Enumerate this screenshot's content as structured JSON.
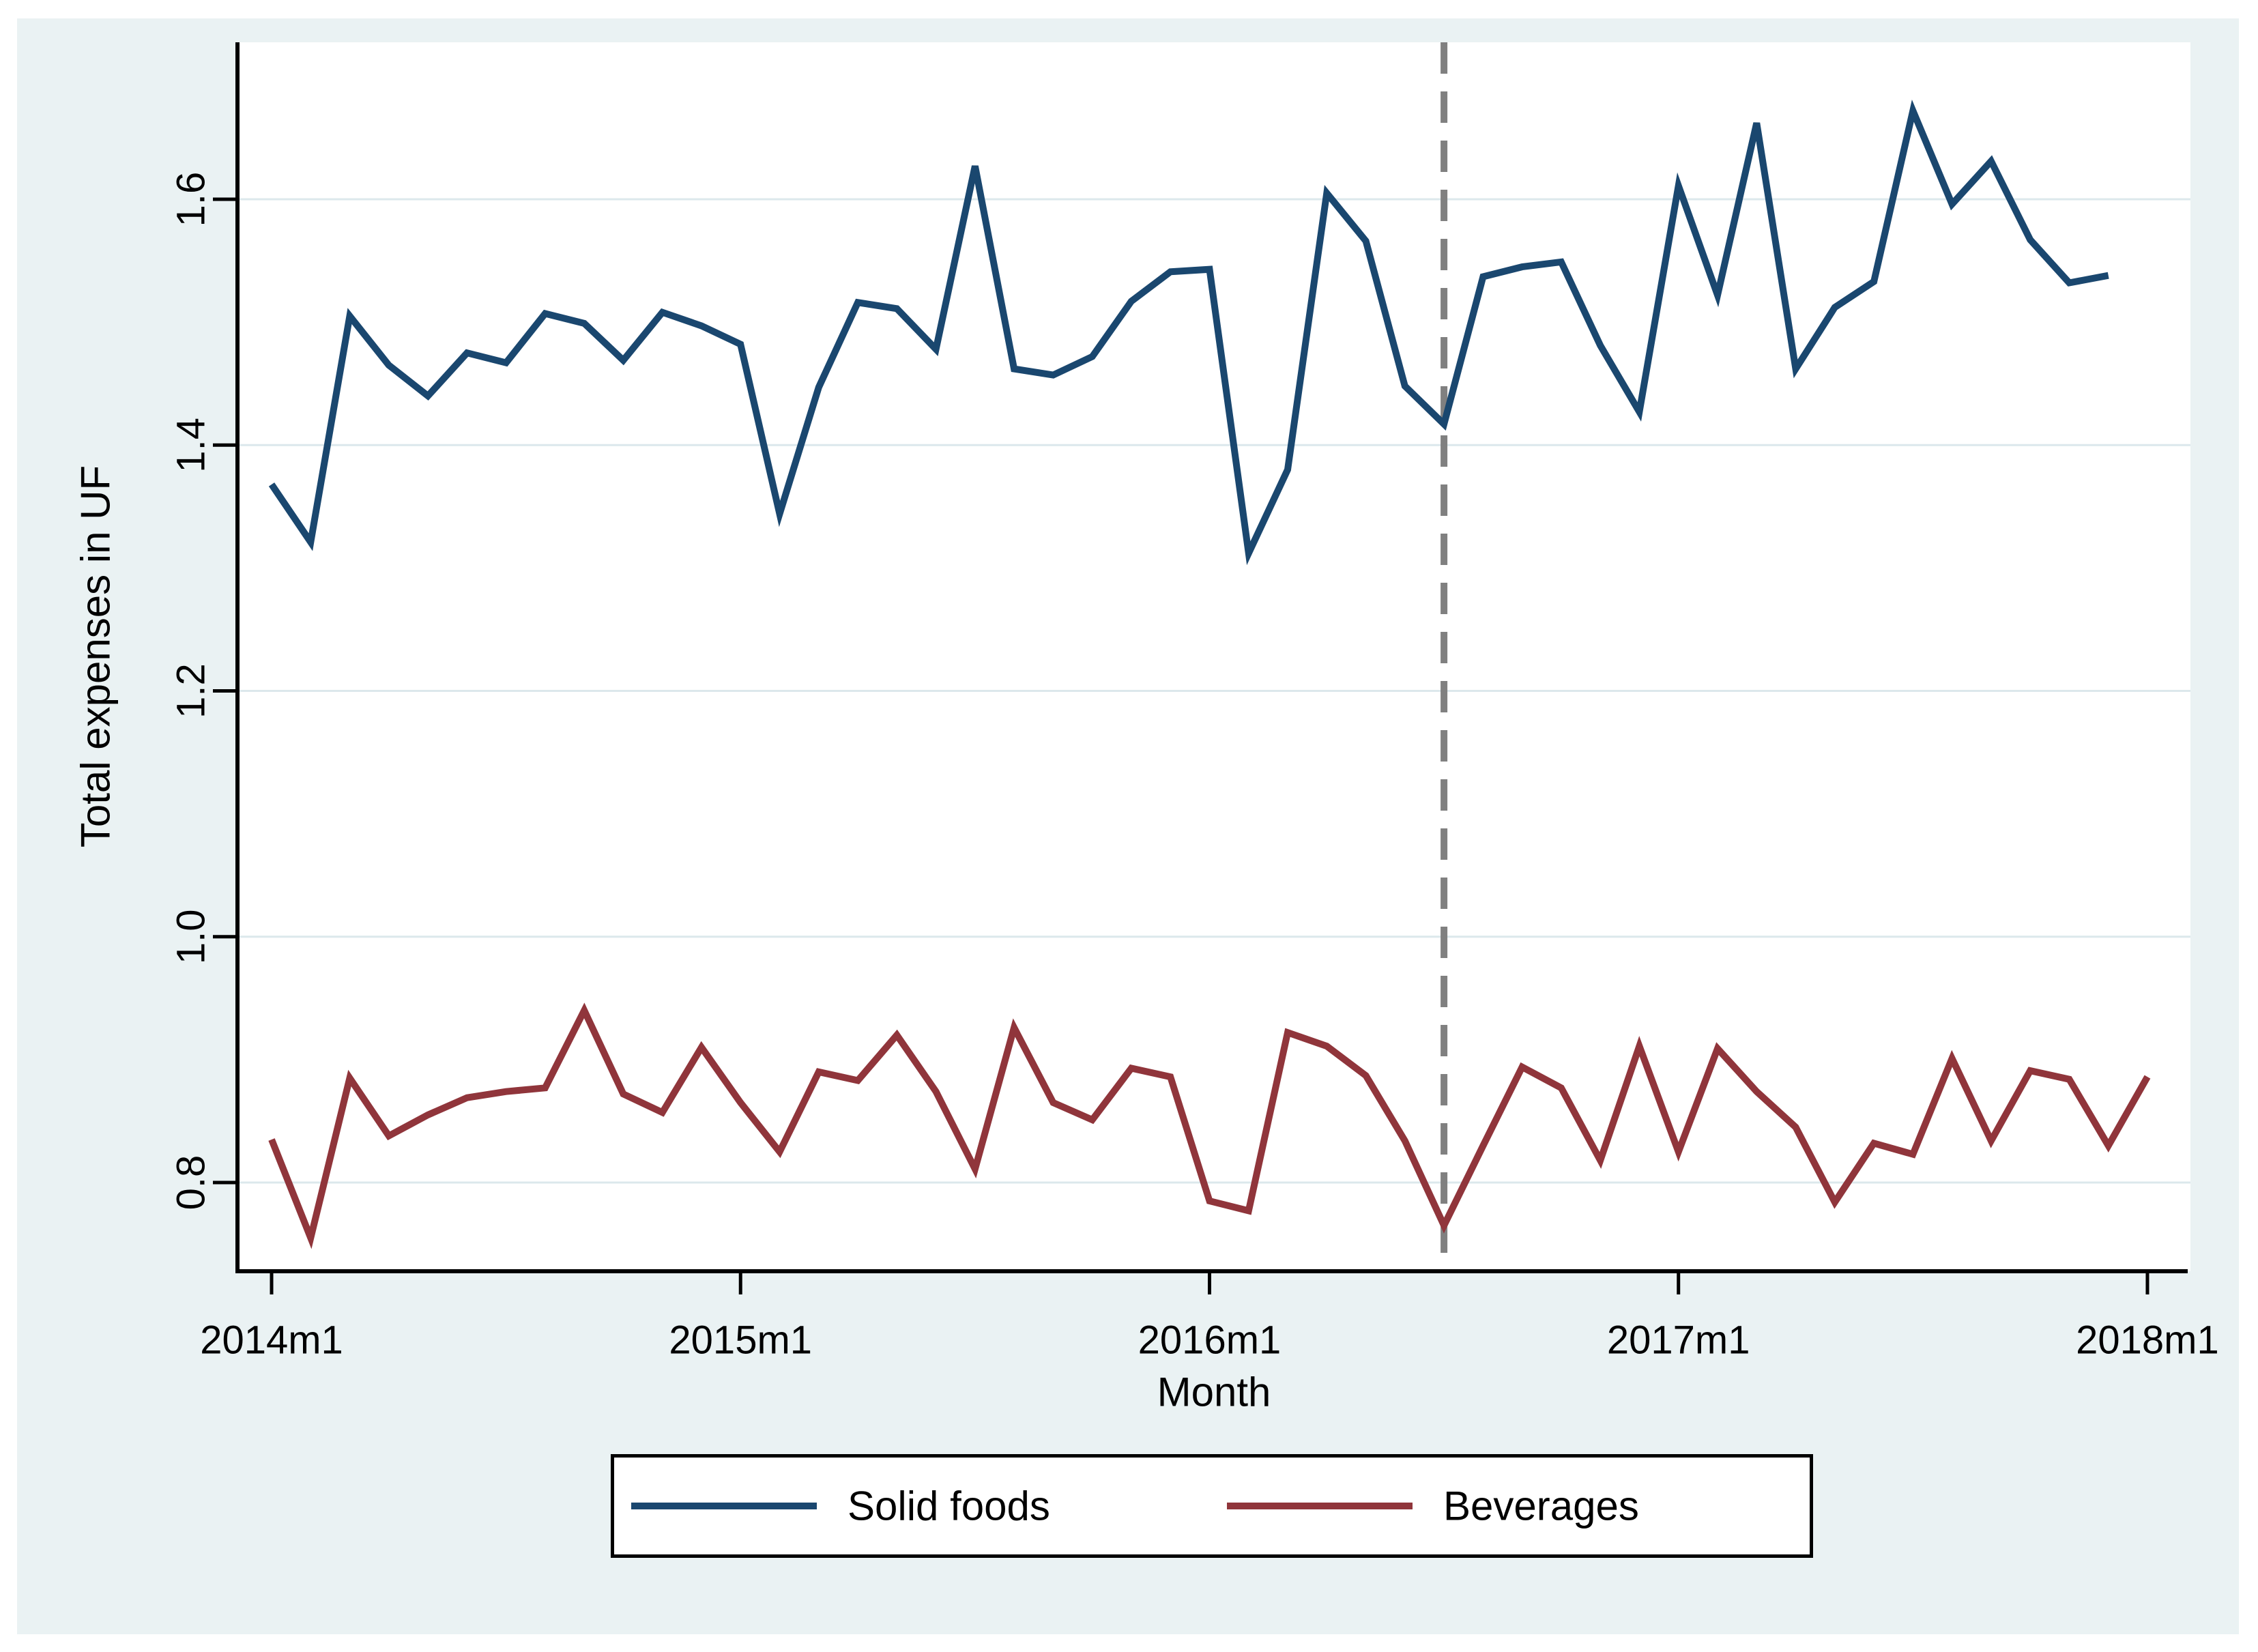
{
  "page": {
    "background": "#ffffff"
  },
  "figure": {
    "background": "#eaf2f3",
    "plot_background": "#ffffff",
    "grid_color": "#dce8ec",
    "axis_color": "#000000",
    "text_color": "#000000",
    "reference_line_color": "#808080"
  },
  "chart_data": {
    "type": "line",
    "title": "",
    "xlabel": "Month",
    "ylabel": "Total expenses in UF",
    "x_tick_labels": [
      "2014m1",
      "2015m1",
      "2016m1",
      "2017m1",
      "2018m1"
    ],
    "x_tick_month_index": [
      0,
      12,
      24,
      36,
      48
    ],
    "y_ticks": [
      0.8,
      1.0,
      1.2,
      1.4,
      1.6
    ],
    "y_tick_labels": [
      "0.8",
      "1.0",
      "1.2",
      "1.4",
      "1.6"
    ],
    "ylim": [
      0.728,
      1.728
    ],
    "xlim_month_index": [
      -0.9,
      49.2
    ],
    "grid": "horizontal",
    "y_tick_label_rotation": -90,
    "reference_line": {
      "month_index": 30,
      "month": "2016m7",
      "style": "dashed"
    },
    "legend": {
      "position": "bottom-center",
      "border": true
    },
    "series": [
      {
        "name": "Solid foods",
        "color": "#1a476f",
        "start": "2014m1",
        "frequency": "monthly",
        "values": [
          1.368,
          1.321,
          1.505,
          1.465,
          1.44,
          1.475,
          1.467,
          1.507,
          1.499,
          1.469,
          1.508,
          1.497,
          1.482,
          1.344,
          1.447,
          1.516,
          1.511,
          1.478,
          1.627,
          1.462,
          1.457,
          1.472,
          1.517,
          1.541,
          1.543,
          1.312,
          1.38,
          1.605,
          1.566,
          1.448,
          1.417,
          1.537,
          1.545,
          1.549,
          1.481,
          1.427,
          1.611,
          1.522,
          1.662,
          1.462,
          1.512,
          1.533,
          1.672,
          1.596,
          1.631,
          1.567,
          1.532,
          1.538
        ]
      },
      {
        "name": "Beverages",
        "color": "#90353b",
        "start": "2014m1",
        "frequency": "monthly",
        "values": [
          0.835,
          0.755,
          0.885,
          0.838,
          0.855,
          0.869,
          0.874,
          0.877,
          0.94,
          0.872,
          0.857,
          0.91,
          0.865,
          0.825,
          0.89,
          0.883,
          0.92,
          0.874,
          0.811,
          0.926,
          0.865,
          0.851,
          0.893,
          0.886,
          0.785,
          0.777,
          0.922,
          0.911,
          0.887,
          0.834,
          0.765,
          0.83,
          0.894,
          0.877,
          0.818,
          0.911,
          0.825,
          0.909,
          0.874,
          0.845,
          0.784,
          0.832,
          0.823,
          0.901,
          0.834,
          0.891,
          0.884,
          0.83,
          0.886
        ]
      }
    ]
  }
}
